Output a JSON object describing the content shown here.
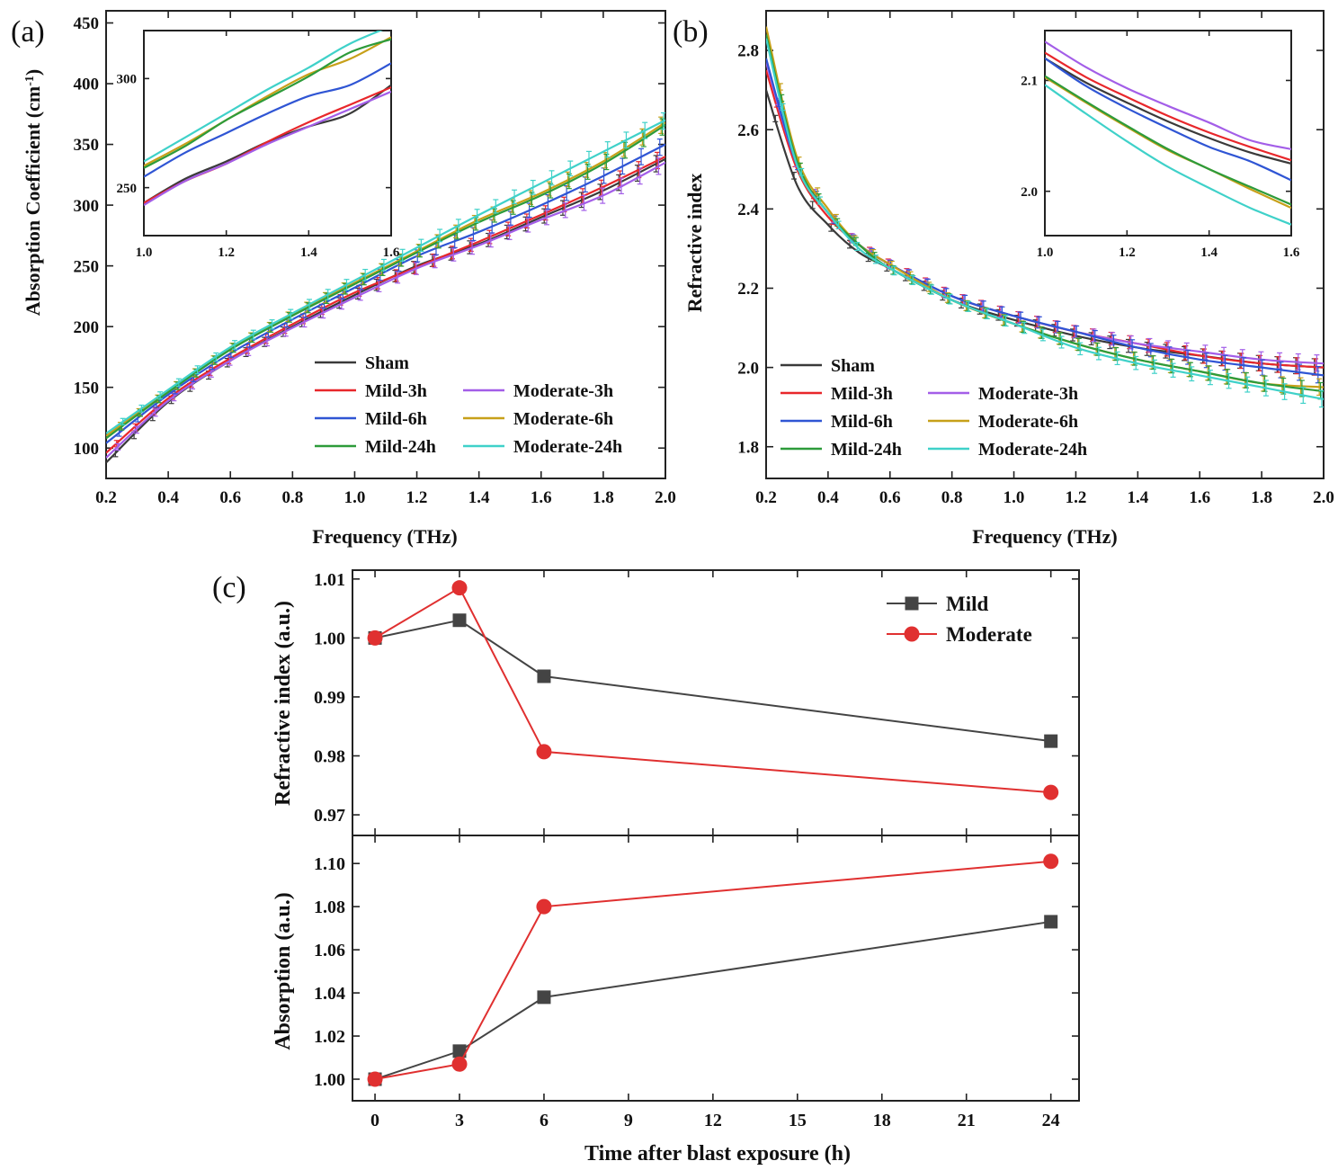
{
  "colors": {
    "Sham": "#3a3a3a",
    "Mild-3h": "#e8272b",
    "Moderate-3h": "#a35ee8",
    "Mild-6h": "#2f55d4",
    "Moderate-6h": "#c7a019",
    "Mild-24h": "#2d9b3a",
    "Moderate-24h": "#3fd1c9",
    "Mild": "#444444",
    "Moderate": "#e03030"
  },
  "chart_data": [
    {
      "id": "a",
      "panel_label": "(a)",
      "type": "line",
      "title": "",
      "xlabel": "Frequency (THz)",
      "ylabel": "Absorption Coefficient (cm",
      "ylabel_sup": "-1",
      "ylabel_end": ")",
      "xlim": [
        0.2,
        2.0
      ],
      "ylim": [
        75,
        460
      ],
      "xticks": [
        "0.2",
        "0.4",
        "0.6",
        "0.8",
        "1.0",
        "1.2",
        "1.4",
        "1.6",
        "1.8",
        "2.0"
      ],
      "yticks": [
        "100",
        "150",
        "200",
        "250",
        "300",
        "350",
        "400",
        "450"
      ],
      "legend": [
        "Sham",
        "Mild-3h",
        "Moderate-3h",
        "Mild-6h",
        "Moderate-6h",
        "Mild-24h",
        "Moderate-24h"
      ],
      "x": [
        0.2,
        0.4,
        0.6,
        0.8,
        1.0,
        1.2,
        1.4,
        1.6,
        1.8,
        2.0
      ],
      "series": [
        {
          "name": "Sham",
          "values": [
            88,
            138,
            172,
            200,
            226,
            250,
            268,
            290,
            312,
            338
          ]
        },
        {
          "name": "Mild-3h",
          "values": [
            96,
            141,
            174,
            202,
            228,
            249,
            270,
            292,
            315,
            340
          ]
        },
        {
          "name": "Moderate-3h",
          "values": [
            92,
            139,
            172,
            199,
            224,
            248,
            267,
            288,
            308,
            335
          ]
        },
        {
          "name": "Mild-6h",
          "values": [
            104,
            144,
            178,
            206,
            232,
            258,
            278,
            300,
            324,
            350
          ]
        },
        {
          "name": "Moderate-6h",
          "values": [
            110,
            147,
            182,
            210,
            236,
            262,
            288,
            310,
            336,
            368
          ]
        },
        {
          "name": "Mild-24h",
          "values": [
            108,
            146,
            181,
            209,
            235,
            261,
            286,
            308,
            334,
            366
          ]
        },
        {
          "name": "Moderate-24h",
          "values": [
            112,
            148,
            183,
            211,
            238,
            265,
            292,
            318,
            344,
            370
          ]
        }
      ],
      "inset": {
        "xlim": [
          1.0,
          1.6
        ],
        "ylim": [
          228,
          322
        ],
        "xticks": [
          "1.0",
          "1.2",
          "1.4",
          "1.6"
        ],
        "yticks": [
          "250",
          "300"
        ],
        "x": [
          1.0,
          1.1,
          1.2,
          1.3,
          1.4,
          1.5,
          1.6
        ],
        "series": [
          {
            "name": "Sham",
            "values": [
              243,
              254,
              262,
              271,
              278,
              284,
              297
            ]
          },
          {
            "name": "Mild-3h",
            "values": [
              243,
              253,
              261,
              271,
              280,
              288,
              296
            ]
          },
          {
            "name": "Moderate-3h",
            "values": [
              242,
              253,
              261,
              270,
              278,
              286,
              294
            ]
          },
          {
            "name": "Mild-6h",
            "values": [
              255,
              266,
              275,
              284,
              292,
              297,
              307
            ]
          },
          {
            "name": "Moderate-6h",
            "values": [
              260,
              270,
              281,
              292,
              302,
              309,
              319
            ]
          },
          {
            "name": "Mild-24h",
            "values": [
              259,
              269,
              281,
              291,
              301,
              312,
              318
            ]
          },
          {
            "name": "Moderate-24h",
            "values": [
              262,
              273,
              284,
              295,
              305,
              316,
              324
            ]
          }
        ]
      }
    },
    {
      "id": "b",
      "panel_label": "(b)",
      "type": "line",
      "title": "",
      "xlabel": "Frequency (THz)",
      "ylabel": "Refractive index",
      "xlim": [
        0.2,
        2.0
      ],
      "ylim": [
        1.72,
        2.9
      ],
      "xticks": [
        "0.2",
        "0.4",
        "0.6",
        "0.8",
        "1.0",
        "1.2",
        "1.4",
        "1.6",
        "1.8",
        "2.0"
      ],
      "yticks": [
        "1.8",
        "2.0",
        "2.2",
        "2.4",
        "2.6",
        "2.8"
      ],
      "legend": [
        "Sham",
        "Mild-3h",
        "Moderate-3h",
        "Mild-6h",
        "Moderate-6h",
        "Mild-24h",
        "Moderate-24h"
      ],
      "x": [
        0.2,
        0.3,
        0.4,
        0.5,
        0.6,
        0.8,
        1.0,
        1.2,
        1.4,
        1.6,
        1.8,
        2.0
      ],
      "series": [
        {
          "name": "Sham",
          "values": [
            2.7,
            2.46,
            2.36,
            2.29,
            2.25,
            2.17,
            2.12,
            2.08,
            2.05,
            2.03,
            2.01,
            2.0
          ]
        },
        {
          "name": "Mild-3h",
          "values": [
            2.75,
            2.5,
            2.38,
            2.31,
            2.26,
            2.18,
            2.13,
            2.09,
            2.06,
            2.03,
            2.01,
            2.0
          ]
        },
        {
          "name": "Moderate-3h",
          "values": [
            2.77,
            2.51,
            2.39,
            2.31,
            2.26,
            2.18,
            2.13,
            2.09,
            2.06,
            2.04,
            2.02,
            2.01
          ]
        },
        {
          "name": "Mild-6h",
          "values": [
            2.78,
            2.51,
            2.39,
            2.31,
            2.26,
            2.18,
            2.13,
            2.09,
            2.05,
            2.02,
            2.0,
            1.98
          ]
        },
        {
          "name": "Moderate-6h",
          "values": [
            2.86,
            2.53,
            2.4,
            2.31,
            2.26,
            2.17,
            2.11,
            2.06,
            2.02,
            1.99,
            1.96,
            1.95
          ]
        },
        {
          "name": "Mild-24h",
          "values": [
            2.84,
            2.52,
            2.39,
            2.31,
            2.25,
            2.17,
            2.11,
            2.06,
            2.02,
            1.99,
            1.96,
            1.94
          ]
        },
        {
          "name": "Moderate-24h",
          "values": [
            2.83,
            2.51,
            2.39,
            2.3,
            2.25,
            2.17,
            2.11,
            2.05,
            2.01,
            1.98,
            1.95,
            1.92
          ]
        }
      ],
      "inset": {
        "xlim": [
          1.0,
          1.6
        ],
        "ylim": [
          1.96,
          2.145
        ],
        "xticks": [
          "1.0",
          "1.2",
          "1.4",
          "1.6"
        ],
        "yticks": [
          "2.0",
          "2.1"
        ],
        "x": [
          1.0,
          1.1,
          1.2,
          1.3,
          1.4,
          1.5,
          1.6
        ],
        "series": [
          {
            "name": "Sham",
            "values": [
              2.12,
              2.098,
              2.08,
              2.063,
              2.048,
              2.035,
              2.025
            ]
          },
          {
            "name": "Mild-3h",
            "values": [
              2.125,
              2.103,
              2.085,
              2.068,
              2.053,
              2.04,
              2.028
            ]
          },
          {
            "name": "Moderate-3h",
            "values": [
              2.135,
              2.112,
              2.093,
              2.077,
              2.062,
              2.046,
              2.038
            ]
          },
          {
            "name": "Mild-6h",
            "values": [
              2.12,
              2.095,
              2.075,
              2.057,
              2.04,
              2.027,
              2.01
            ]
          },
          {
            "name": "Moderate-6h",
            "values": [
              2.103,
              2.08,
              2.058,
              2.037,
              2.02,
              2.002,
              1.985
            ]
          },
          {
            "name": "Mild-24h",
            "values": [
              2.104,
              2.081,
              2.059,
              2.038,
              2.02,
              2.004,
              1.988
            ]
          },
          {
            "name": "Moderate-24h",
            "values": [
              2.096,
              2.07,
              2.045,
              2.022,
              2.003,
              1.985,
              1.97
            ]
          }
        ]
      }
    },
    {
      "id": "c",
      "panel_label": "(c)",
      "type": "line",
      "xlabel": "Time after blast exposure (h)",
      "x": [
        0,
        3,
        6,
        24
      ],
      "xlim": [
        -0.8,
        25
      ],
      "xticks": [
        "0",
        "3",
        "6",
        "9",
        "12",
        "15",
        "18",
        "21",
        "24"
      ],
      "legend": [
        "Mild",
        "Moderate"
      ],
      "top": {
        "ylabel": "Refractive index (a.u.)",
        "ylim": [
          0.9665,
          1.0115
        ],
        "yticks": [
          "0.97",
          "0.98",
          "0.99",
          "1.00",
          "1.01"
        ],
        "series": [
          {
            "name": "Mild",
            "marker": "square",
            "values": [
              1.0,
              1.003,
              0.9935,
              0.9825
            ]
          },
          {
            "name": "Moderate",
            "marker": "circle",
            "values": [
              1.0,
              1.0085,
              0.9807,
              0.9738
            ]
          }
        ]
      },
      "bottom": {
        "ylabel": "Absorption (a.u.)",
        "ylim": [
          0.99,
          1.113
        ],
        "yticks": [
          "1.00",
          "1.02",
          "1.04",
          "1.06",
          "1.08",
          "1.10"
        ],
        "series": [
          {
            "name": "Mild",
            "marker": "square",
            "values": [
              1.0,
              1.013,
              1.038,
              1.073
            ]
          },
          {
            "name": "Moderate",
            "marker": "circle",
            "values": [
              1.0,
              1.007,
              1.08,
              1.101
            ]
          }
        ]
      }
    }
  ]
}
